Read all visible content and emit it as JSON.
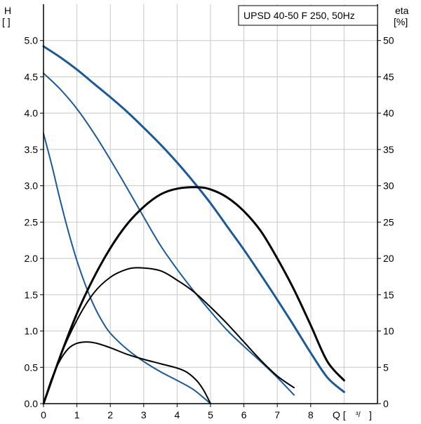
{
  "chart_data": {
    "type": "line",
    "title": "UPSD 40-50 F 250, 50Hz",
    "x_axis": {
      "label_left": "Q [",
      "label_unit": "³/",
      "label_right": "]",
      "range": [
        0,
        10
      ],
      "ticks": [
        0,
        1,
        2,
        3,
        4,
        5,
        6,
        7,
        8
      ]
    },
    "y_left": {
      "label_line1": "H",
      "label_line2": "[ ]",
      "range": [
        0,
        5.5
      ],
      "ticks": [
        "0.0",
        "0.5",
        "1.0",
        "1.5",
        "2.0",
        "2.5",
        "3.0",
        "3.5",
        "4.0",
        "4.5",
        "5.0"
      ]
    },
    "y_right": {
      "label_line1": "eta",
      "label_line2": "[%]",
      "range": [
        0,
        55
      ],
      "ticks": [
        "0",
        "5",
        "10",
        "15",
        "20",
        "25",
        "30",
        "35",
        "40",
        "45",
        "50"
      ]
    },
    "grid": true,
    "colors": {
      "head": "#1a5a96",
      "efficiency": "#000000",
      "grid": "#c8c8c8",
      "axis": "#000000"
    },
    "series": [
      {
        "axis": "left",
        "kind": "head",
        "width": 3,
        "x": [
          0,
          0.5,
          1,
          1.5,
          2,
          2.5,
          3,
          3.5,
          4,
          4.5,
          5,
          5.5,
          6,
          6.5,
          7,
          7.5,
          8,
          8.5,
          9
        ],
        "y": [
          4.92,
          4.77,
          4.6,
          4.41,
          4.22,
          4.02,
          3.8,
          3.57,
          3.32,
          3.05,
          2.76,
          2.44,
          2.12,
          1.78,
          1.43,
          1.07,
          0.7,
          0.36,
          0.16
        ]
      },
      {
        "axis": "left",
        "kind": "head",
        "width": 2,
        "x": [
          0,
          0.5,
          1,
          1.5,
          2,
          2.5,
          3,
          3.5,
          4,
          4.5,
          5,
          5.5,
          6,
          6.5,
          7,
          7.5
        ],
        "y": [
          4.55,
          4.33,
          4.06,
          3.73,
          3.36,
          2.97,
          2.57,
          2.18,
          1.85,
          1.55,
          1.27,
          1.01,
          0.79,
          0.58,
          0.36,
          0.12
        ]
      },
      {
        "axis": "left",
        "kind": "head",
        "width": 2,
        "x": [
          0,
          0.25,
          0.5,
          0.75,
          1,
          1.25,
          1.5,
          1.75,
          2,
          2.5,
          3,
          3.5,
          4,
          4.5,
          5
        ],
        "y": [
          3.72,
          3.28,
          2.8,
          2.36,
          1.97,
          1.64,
          1.36,
          1.14,
          0.97,
          0.75,
          0.58,
          0.44,
          0.32,
          0.19,
          0.0
        ]
      },
      {
        "axis": "right",
        "kind": "efficiency",
        "width": 3,
        "x": [
          0,
          0.5,
          1,
          1.5,
          2,
          2.5,
          3,
          3.5,
          4,
          4.6,
          5,
          5.5,
          6,
          6.5,
          7,
          7.5,
          8,
          8.5,
          9
        ],
        "y": [
          0,
          6.5,
          12.4,
          17.3,
          21.4,
          24.7,
          27.1,
          28.8,
          29.6,
          29.8,
          29.5,
          28.4,
          26.5,
          23.8,
          20.0,
          15.7,
          10.8,
          5.8,
          3.2
        ]
      },
      {
        "axis": "right",
        "kind": "efficiency",
        "width": 2,
        "x": [
          0,
          0.5,
          1,
          1.5,
          2,
          2.5,
          2.9,
          3.5,
          4,
          4.5,
          5,
          5.5,
          6,
          6.5,
          7,
          7.5
        ],
        "y": [
          0,
          6.5,
          11.5,
          15.2,
          17.4,
          18.5,
          18.7,
          18.3,
          17.0,
          15.4,
          13.3,
          11.0,
          8.5,
          6.0,
          3.8,
          2.2
        ]
      },
      {
        "axis": "right",
        "kind": "efficiency",
        "width": 2,
        "x": [
          0,
          0.25,
          0.5,
          0.75,
          1,
          1.3,
          1.6,
          2,
          2.5,
          3,
          3.5,
          4,
          4.3,
          4.6,
          4.8,
          5
        ],
        "y": [
          0,
          3.5,
          6.0,
          7.6,
          8.3,
          8.5,
          8.3,
          7.7,
          6.8,
          6.1,
          5.5,
          4.9,
          4.3,
          3.1,
          1.8,
          0.0
        ]
      }
    ]
  }
}
